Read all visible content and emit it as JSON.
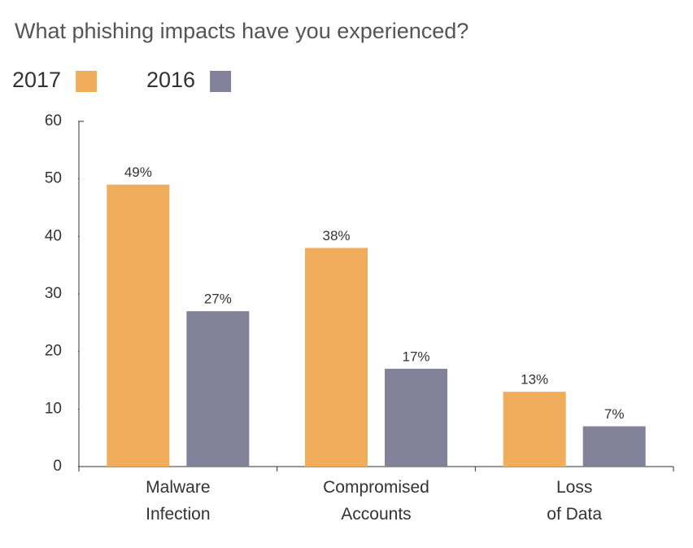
{
  "chart_data": {
    "type": "bar",
    "title": "What phishing impacts have you experienced?",
    "categories": [
      "Malware\nInfection",
      "Compromised\nAccounts",
      "Loss\nof Data"
    ],
    "series": [
      {
        "name": "2017",
        "color": "#f0ad5b",
        "values": [
          49,
          38,
          13
        ],
        "value_labels": [
          "49%",
          "38%",
          "13%"
        ]
      },
      {
        "name": "2016",
        "color": "#81829a",
        "values": [
          27,
          17,
          7
        ],
        "value_labels": [
          "27%",
          "17%",
          "7%"
        ]
      }
    ],
    "ylim": [
      0,
      60
    ],
    "yticks": [
      0,
      10,
      20,
      30,
      40,
      50,
      60
    ]
  }
}
